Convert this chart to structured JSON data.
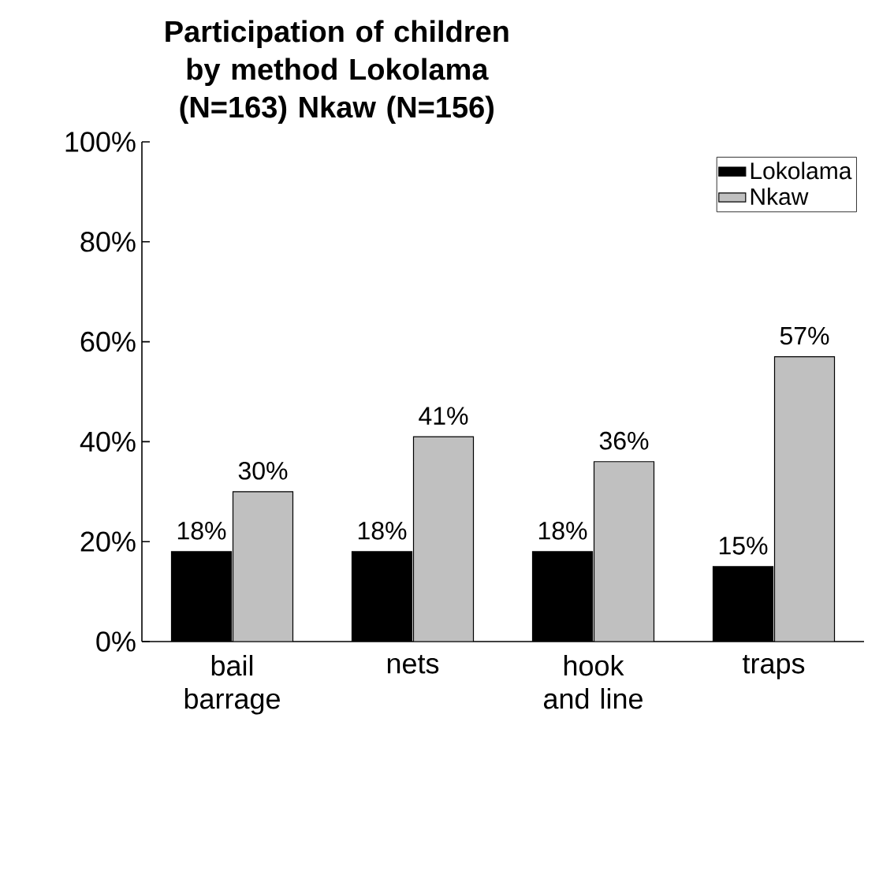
{
  "chart_data": {
    "type": "bar",
    "title": "Participation of children by method Lokolama (N=163)  Nkaw (N=156)",
    "categories": [
      "bail barrage",
      "nets",
      "hook and line",
      "traps"
    ],
    "series": [
      {
        "name": "Lokolama",
        "color": "#000000",
        "values": [
          18,
          18,
          18,
          15
        ],
        "value_labels": [
          "18%",
          "18%",
          "18%",
          "15%"
        ]
      },
      {
        "name": "Nkaw",
        "color": "#c0c0c0",
        "values": [
          30,
          41,
          36,
          57
        ],
        "value_labels": [
          "30%",
          "41%",
          "36%",
          "57%"
        ]
      }
    ],
    "ylim": [
      0,
      100
    ],
    "yticks": [
      {
        "value": 0,
        "label": "0%"
      },
      {
        "value": 20,
        "label": "20%"
      },
      {
        "value": 40,
        "label": "40%"
      },
      {
        "value": 60,
        "label": "60%"
      },
      {
        "value": 80,
        "label": "80%"
      },
      {
        "value": 100,
        "label": "100%"
      }
    ],
    "grid": false,
    "legend": "top right"
  }
}
